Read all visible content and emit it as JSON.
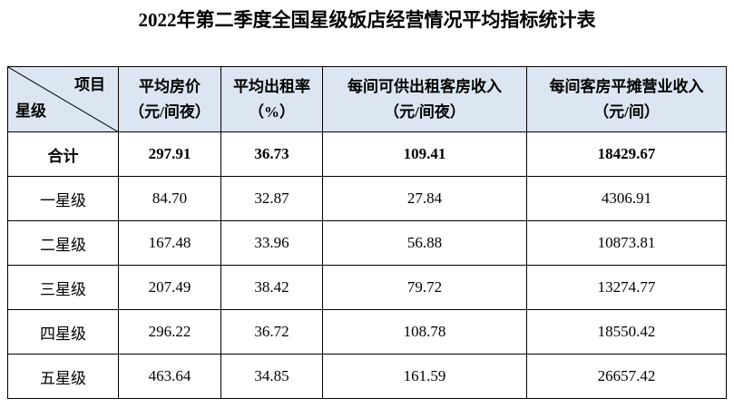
{
  "title": "2022年第二季度全国星级饭店经营情况平均指标统计表",
  "table": {
    "corner": {
      "top": "项目",
      "bottom": "星级"
    },
    "headers": [
      [
        "平均房价",
        "（元/间夜）"
      ],
      [
        "平均出租率",
        "（%）"
      ],
      [
        "每间可供出租客房收入",
        "（元/间夜）"
      ],
      [
        "每间客房平摊营业收入",
        "（元/间）"
      ]
    ],
    "rows": [
      [
        "合计",
        "297.91",
        "36.73",
        "109.41",
        "18429.67"
      ],
      [
        "一星级",
        "84.70",
        "32.87",
        "27.84",
        "4306.91"
      ],
      [
        "二星级",
        "167.48",
        "33.96",
        "56.88",
        "10873.81"
      ],
      [
        "三星级",
        "207.49",
        "38.42",
        "79.72",
        "13274.77"
      ],
      [
        "四星级",
        "296.22",
        "36.72",
        "108.78",
        "18550.42"
      ],
      [
        "五星级",
        "463.64",
        "34.85",
        "161.59",
        "26657.42"
      ]
    ]
  }
}
